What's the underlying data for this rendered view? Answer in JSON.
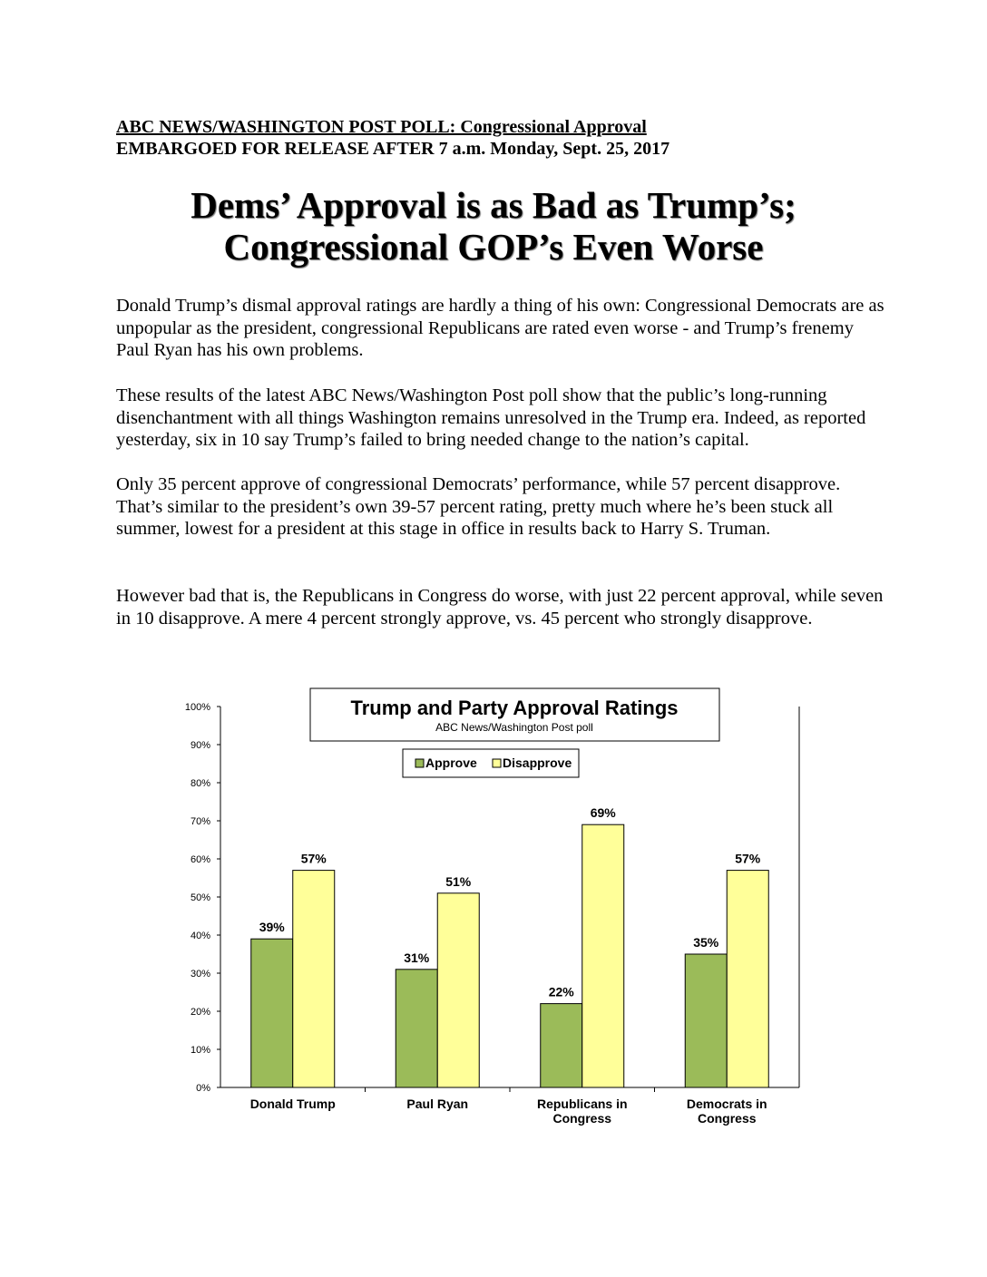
{
  "header": {
    "line1": "ABC NEWS/WASHINGTON POST POLL: Congressional Approval",
    "line2": "EMBARGOED FOR RELEASE AFTER 7 a.m. Monday, Sept. 25, 2017"
  },
  "headline": {
    "line1": "Dems’ Approval is as Bad as Trump’s;",
    "line2": "Congressional GOP’s Even Worse"
  },
  "paragraphs": [
    "Donald Trump’s dismal approval ratings are hardly a thing of his own: Congressional Democrats are as unpopular as the president, congressional Republicans are rated even worse - and Trump’s frenemy Paul Ryan has his own problems.",
    "These results of the latest ABC News/Washington Post poll show that the public’s long-running disenchantment with all things Washington remains unresolved in the Trump era. Indeed, as reported yesterday, six in 10 say Trump’s failed to bring needed change to the nation’s capital.",
    "Only 35 percent approve of congressional Democrats’ performance, while 57 percent disapprove. That’s similar to the president’s own 39-57 percent rating, pretty much where he’s been stuck all summer, lowest for a president at this stage in office in results back to Harry S. Truman.",
    "However bad that is, the Republicans in Congress do worse, with just 22 percent approval, while seven in 10 disapprove. A mere 4 percent strongly approve, vs. 45 percent who strongly disapprove."
  ],
  "chart_data": {
    "type": "bar",
    "title": "Trump and Party Approval Ratings",
    "subtitle": "ABC News/Washington  Post poll",
    "categories": [
      [
        "Donald Trump"
      ],
      [
        "Paul Ryan"
      ],
      [
        "Republicans in",
        "Congress"
      ],
      [
        "Democrats in",
        "Congress"
      ]
    ],
    "series": [
      {
        "name": "Approve",
        "color": "#9bbb59",
        "values": [
          39,
          31,
          22,
          35
        ],
        "labels": [
          "39%",
          "31%",
          "22%",
          "35%"
        ]
      },
      {
        "name": "Disapprove",
        "color": "#ffff99",
        "values": [
          57,
          51,
          69,
          57
        ],
        "labels": [
          "57%",
          "51%",
          "69%",
          "57%"
        ]
      }
    ],
    "ylim": [
      0,
      100
    ],
    "yticks": [
      "0%",
      "10%",
      "20%",
      "30%",
      "40%",
      "50%",
      "60%",
      "70%",
      "80%",
      "90%",
      "100%"
    ],
    "legend_position": "top-center",
    "grid": false
  }
}
